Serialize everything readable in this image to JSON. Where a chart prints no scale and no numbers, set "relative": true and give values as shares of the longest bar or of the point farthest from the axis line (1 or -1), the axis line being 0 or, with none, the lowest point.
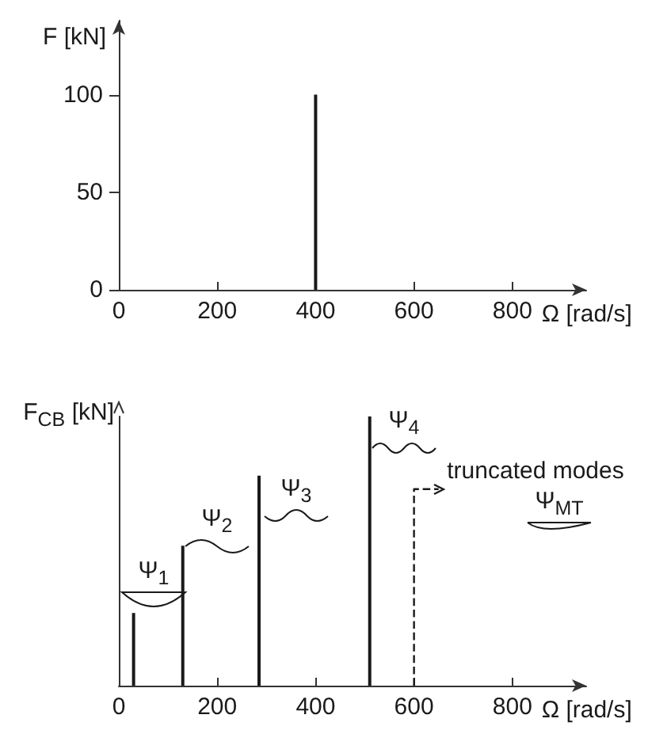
{
  "chart_data": [
    {
      "type": "bar",
      "x": [
        400
      ],
      "values": [
        100
      ],
      "color": "#1a1a1a",
      "xlim": [
        0,
        950
      ],
      "xticks": [
        0,
        200,
        400,
        600,
        800
      ],
      "ylim": [
        0,
        138
      ],
      "yticks": [
        0,
        50,
        100
      ],
      "xlabel": "Ω [rad/s]",
      "ylabel": "F [kN]",
      "grid": false
    },
    {
      "type": "bar",
      "relative": true,
      "xlim": [
        0,
        950
      ],
      "xticks": [
        0,
        200,
        400,
        600,
        800
      ],
      "xlabel": "Ω [rad/s]",
      "ylabel": "F$_{CB}$ [kN]",
      "grid": false,
      "series": [
        {
          "type": "bar",
          "color": "#1a1a1a",
          "x": [
            30,
            130,
            285,
            510
          ],
          "values": [
            0.27,
            0.52,
            0.78,
            1
          ]
        },
        {
          "type": "line",
          "line_style": "dashed",
          "color": "#1a1a1a",
          "x": [
            600,
            600,
            650
          ],
          "values": [
            0,
            0.73,
            0.73
          ]
        }
      ],
      "annotations": [
        "Ψ$_{1}$",
        "Ψ$_{2}$",
        "Ψ$_{3}$",
        "Ψ$_{4}$",
        "truncated modes",
        "Ψ$_{MT}$"
      ]
    }
  ]
}
